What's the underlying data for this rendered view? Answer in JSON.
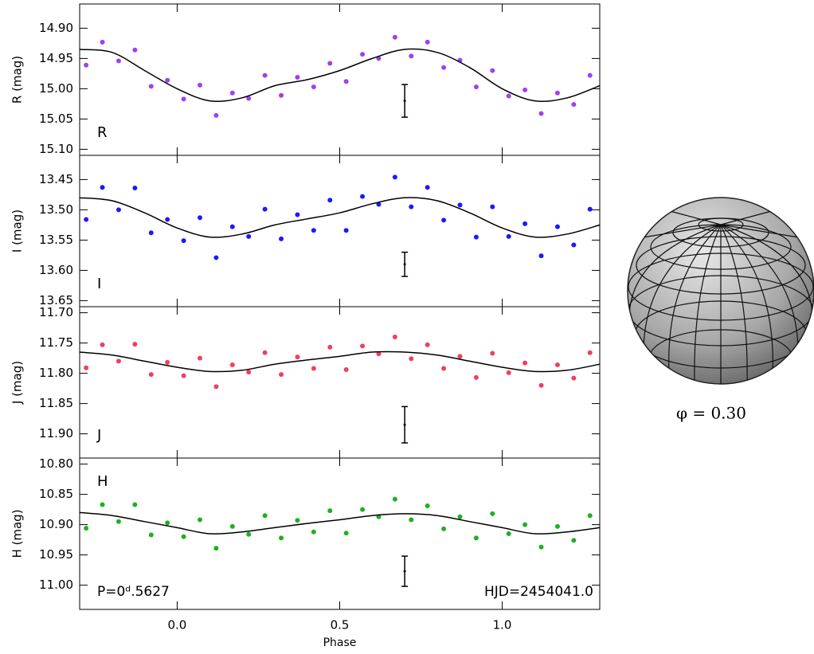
{
  "chart_data": [
    {
      "type": "scatter",
      "ylabel": "R (mag)",
      "panel_label": "R",
      "xlim": [
        -0.3,
        1.3
      ],
      "xticks": [
        0,
        0.5,
        1
      ],
      "ylim": [
        15.11,
        14.86
      ],
      "yticks": [
        {
          "value": 14.9,
          "label": "14.90"
        },
        {
          "value": 14.95,
          "label": "14.95"
        },
        {
          "value": 15.0,
          "label": "15.00"
        },
        {
          "value": 15.05,
          "label": "15.05"
        },
        {
          "value": 15.1,
          "label": "15.10"
        }
      ],
      "series": [
        {
          "color": "#a040f0",
          "x": [
            -0.28,
            -0.23,
            -0.18,
            -0.13,
            -0.08,
            -0.03,
            0.02,
            0.07,
            0.12,
            0.17,
            0.22,
            0.27,
            0.32,
            0.37,
            0.42,
            0.47,
            0.52,
            0.57,
            0.62,
            0.67,
            0.72,
            0.77,
            0.82,
            0.87,
            0.92,
            0.97,
            1.02,
            1.07,
            1.12,
            1.17,
            1.22,
            1.27
          ],
          "values": [
            14.961,
            14.923,
            14.954,
            14.936,
            14.996,
            14.986,
            15.017,
            14.994,
            15.044,
            15.007,
            15.016,
            14.978,
            15.011,
            14.981,
            14.997,
            14.958,
            14.988,
            14.943,
            14.95,
            14.915,
            14.946,
            14.923,
            14.965,
            14.953,
            14.997,
            14.97,
            15.012,
            15.002,
            15.041,
            15.007,
            15.026,
            14.978
          ]
        }
      ],
      "curve": {
        "color": "#000000",
        "x": [
          -0.3,
          -0.2,
          -0.1,
          0,
          0.1,
          0.2,
          0.3,
          0.4,
          0.5,
          0.6,
          0.7,
          0.8,
          0.9,
          1,
          1.1,
          1.2,
          1.3
        ],
        "values": [
          14.935,
          14.94,
          14.97,
          15.0,
          15.02,
          15.015,
          14.995,
          14.985,
          14.97,
          14.95,
          14.935,
          14.94,
          14.965,
          15.0,
          15.02,
          15.015,
          14.995
        ]
      },
      "error_bar": {
        "x": 0.7,
        "value": 15.02,
        "error": 0.027
      }
    },
    {
      "type": "scatter",
      "ylabel": "I (mag)",
      "panel_label": "I",
      "xlim": [
        -0.3,
        1.3
      ],
      "xticks": [
        0,
        0.5,
        1
      ],
      "ylim": [
        13.66,
        13.41
      ],
      "yticks": [
        {
          "value": 13.45,
          "label": "13.45"
        },
        {
          "value": 13.5,
          "label": "13.50"
        },
        {
          "value": 13.55,
          "label": "13.55"
        },
        {
          "value": 13.6,
          "label": "13.60"
        },
        {
          "value": 13.65,
          "label": "13.65"
        }
      ],
      "series": [
        {
          "color": "#1a1aff",
          "x": [
            -0.28,
            -0.23,
            -0.18,
            -0.13,
            -0.08,
            -0.03,
            0.02,
            0.07,
            0.12,
            0.17,
            0.22,
            0.27,
            0.32,
            0.37,
            0.42,
            0.47,
            0.52,
            0.57,
            0.62,
            0.67,
            0.72,
            0.77,
            0.82,
            0.87,
            0.92,
            0.97,
            1.02,
            1.07,
            1.12,
            1.17,
            1.22,
            1.27
          ],
          "values": [
            13.516,
            13.463,
            13.5,
            13.464,
            13.538,
            13.516,
            13.551,
            13.513,
            13.579,
            13.528,
            13.544,
            13.499,
            13.548,
            13.508,
            13.534,
            13.484,
            13.534,
            13.478,
            13.491,
            13.446,
            13.495,
            13.463,
            13.517,
            13.492,
            13.545,
            13.495,
            13.544,
            13.523,
            13.576,
            13.528,
            13.558,
            13.499
          ]
        }
      ],
      "curve": {
        "color": "#000000",
        "x": [
          -0.3,
          -0.2,
          -0.1,
          0,
          0.1,
          0.2,
          0.3,
          0.4,
          0.5,
          0.6,
          0.7,
          0.8,
          0.9,
          1,
          1.1,
          1.2,
          1.3
        ],
        "values": [
          13.48,
          13.485,
          13.505,
          13.53,
          13.545,
          13.54,
          13.525,
          13.515,
          13.505,
          13.49,
          13.48,
          13.485,
          13.505,
          13.53,
          13.545,
          13.54,
          13.525
        ]
      },
      "error_bar": {
        "x": 0.7,
        "value": 13.59,
        "error": 0.02
      }
    },
    {
      "type": "scatter",
      "ylabel": "J (mag)",
      "panel_label": "J",
      "xlim": [
        -0.3,
        1.3
      ],
      "xticks": [
        0,
        0.5,
        1
      ],
      "ylim": [
        11.94,
        11.69
      ],
      "yticks": [
        {
          "value": 11.7,
          "label": "11.70"
        },
        {
          "value": 11.75,
          "label": "11.75"
        },
        {
          "value": 11.8,
          "label": "11.80"
        },
        {
          "value": 11.85,
          "label": "11.85"
        },
        {
          "value": 11.9,
          "label": "11.90"
        }
      ],
      "series": [
        {
          "color": "#f0405a",
          "x": [
            -0.28,
            -0.23,
            -0.18,
            -0.13,
            -0.08,
            -0.03,
            0.02,
            0.07,
            0.12,
            0.17,
            0.22,
            0.27,
            0.32,
            0.37,
            0.42,
            0.47,
            0.52,
            0.57,
            0.62,
            0.67,
            0.72,
            0.77,
            0.82,
            0.87,
            0.92,
            0.97,
            1.02,
            1.07,
            1.12,
            1.17,
            1.22,
            1.27
          ],
          "values": [
            11.791,
            11.753,
            11.78,
            11.752,
            11.802,
            11.782,
            11.804,
            11.775,
            11.822,
            11.786,
            11.798,
            11.766,
            11.802,
            11.773,
            11.792,
            11.757,
            11.794,
            11.755,
            11.768,
            11.74,
            11.776,
            11.753,
            11.792,
            11.772,
            11.807,
            11.767,
            11.799,
            11.783,
            11.82,
            11.786,
            11.808,
            11.766
          ]
        }
      ],
      "curve": {
        "color": "#000000",
        "x": [
          -0.3,
          -0.2,
          -0.1,
          0,
          0.1,
          0.2,
          0.3,
          0.4,
          0.5,
          0.6,
          0.7,
          0.8,
          0.9,
          1,
          1.1,
          1.2,
          1.3
        ],
        "values": [
          11.765,
          11.77,
          11.78,
          11.79,
          11.797,
          11.795,
          11.785,
          11.778,
          11.772,
          11.765,
          11.765,
          11.77,
          11.78,
          11.79,
          11.797,
          11.795,
          11.785
        ]
      },
      "error_bar": {
        "x": 0.7,
        "value": 11.885,
        "error": 0.03
      }
    },
    {
      "type": "scatter",
      "ylabel": "H (mag)",
      "panel_label": "H",
      "xlabel": "Phase",
      "annotations": [
        "P=0ᵈ.5627",
        "HJD=2454041.0"
      ],
      "xlim": [
        -0.3,
        1.3
      ],
      "xticks": [
        {
          "value": 0,
          "label": "0.0"
        },
        {
          "value": 0.5,
          "label": "0.5"
        },
        {
          "value": 1,
          "label": "1.0"
        }
      ],
      "ylim": [
        11.04,
        10.79
      ],
      "yticks": [
        {
          "value": 10.8,
          "label": "10.80"
        },
        {
          "value": 10.85,
          "label": "10.85"
        },
        {
          "value": 10.9,
          "label": "10.90"
        },
        {
          "value": 10.95,
          "label": "10.95"
        },
        {
          "value": 11.0,
          "label": "11.00"
        }
      ],
      "series": [
        {
          "color": "#20b020",
          "x": [
            -0.28,
            -0.23,
            -0.18,
            -0.13,
            -0.08,
            -0.03,
            0.02,
            0.07,
            0.12,
            0.17,
            0.22,
            0.27,
            0.32,
            0.37,
            0.42,
            0.47,
            0.52,
            0.57,
            0.62,
            0.67,
            0.72,
            0.77,
            0.82,
            0.87,
            0.92,
            0.97,
            1.02,
            1.07,
            1.12,
            1.17,
            1.22,
            1.27
          ],
          "values": [
            10.906,
            10.867,
            10.895,
            10.867,
            10.917,
            10.897,
            10.92,
            10.892,
            10.939,
            10.903,
            10.916,
            10.885,
            10.922,
            10.893,
            10.912,
            10.877,
            10.914,
            10.875,
            10.887,
            10.858,
            10.892,
            10.869,
            10.907,
            10.887,
            10.922,
            10.882,
            10.915,
            10.9,
            10.937,
            10.903,
            10.926,
            10.885
          ]
        }
      ],
      "curve": {
        "color": "#000000",
        "x": [
          -0.3,
          -0.2,
          -0.1,
          0,
          0.1,
          0.2,
          0.3,
          0.4,
          0.5,
          0.6,
          0.7,
          0.8,
          0.9,
          1,
          1.1,
          1.2,
          1.3
        ],
        "values": [
          10.88,
          10.885,
          10.895,
          10.905,
          10.915,
          10.912,
          10.905,
          10.898,
          10.892,
          10.885,
          10.882,
          10.885,
          10.895,
          10.905,
          10.915,
          10.912,
          10.905
        ]
      },
      "error_bar": {
        "x": 0.7,
        "value": 10.977,
        "error": 0.025
      }
    }
  ],
  "inset": {
    "label": "φ = 0.30"
  }
}
